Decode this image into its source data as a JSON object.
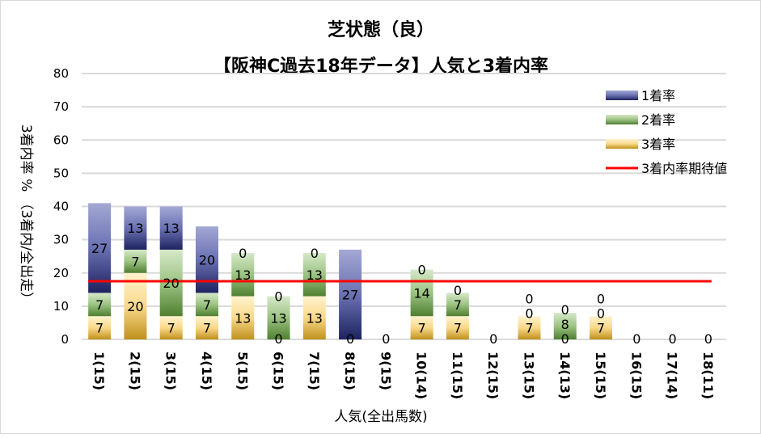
{
  "chart_data": {
    "type": "bar",
    "stacked": true,
    "title": "芝状態（良）",
    "subtitle": "【阪神C過去18年データ】人気と3着内率",
    "xlabel": "人気(全出馬数)",
    "ylabel": "3着内率 %  （3着内/全出走）",
    "ylim": [
      0,
      80
    ],
    "yticks": [
      0,
      10,
      20,
      30,
      40,
      50,
      60,
      70,
      80
    ],
    "grid": true,
    "legend_position": "top-right",
    "categories": [
      "1(15)",
      "2(15)",
      "3(15)",
      "4(15)",
      "5(15)",
      "6(15)",
      "7(15)",
      "8(15)",
      "9(15)",
      "10(14)",
      "11(15)",
      "12(15)",
      "13(15)",
      "14(13)",
      "15(15)",
      "16(15)",
      "17(14)",
      "18(11)"
    ],
    "series": [
      {
        "name": "3着率",
        "color": "#c9a227",
        "values": [
          7,
          20,
          7,
          7,
          13,
          0,
          13,
          0,
          0,
          7,
          7,
          0,
          7,
          0,
          7,
          0,
          0,
          0
        ]
      },
      {
        "name": "2着率",
        "color": "#5b8c3a",
        "values": [
          7,
          7,
          20,
          7,
          13,
          13,
          13,
          0,
          0,
          14,
          7,
          0,
          0,
          8,
          0,
          0,
          0,
          0
        ]
      },
      {
        "name": "1着率",
        "color": "#3c438f",
        "values": [
          27,
          13,
          13,
          20,
          0,
          0,
          0,
          27,
          0,
          0,
          0,
          0,
          0,
          0,
          0,
          0,
          0,
          0
        ]
      }
    ],
    "reference_line": {
      "name": "3着内率期待値",
      "color": "#ff0000",
      "value": 17.5
    }
  }
}
